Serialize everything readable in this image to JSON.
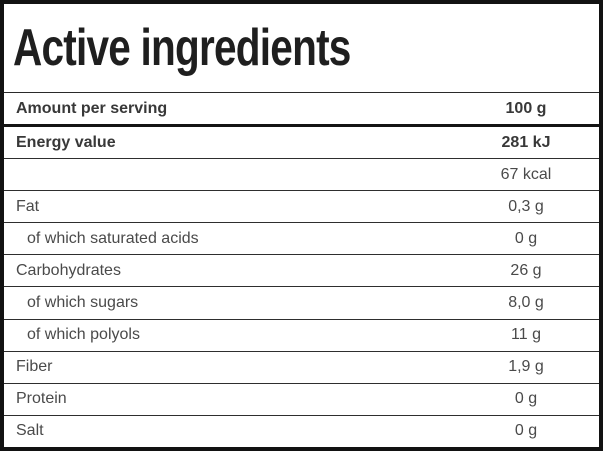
{
  "table": {
    "title": "Active ingredients",
    "header": {
      "label": "Amount per serving",
      "value": "100 g"
    },
    "rows": [
      {
        "label": "Energy value",
        "value": "281 kJ",
        "bold": true,
        "indent": false
      },
      {
        "label": "",
        "value": "67 kcal",
        "bold": false,
        "indent": false
      },
      {
        "label": "Fat",
        "value": "0,3 g",
        "bold": false,
        "indent": false
      },
      {
        "label": "of which saturated acids",
        "value": "0 g",
        "bold": false,
        "indent": true
      },
      {
        "label": "Carbohydrates",
        "value": "26 g",
        "bold": false,
        "indent": false
      },
      {
        "label": "of which sugars",
        "value": "8,0 g",
        "bold": false,
        "indent": true
      },
      {
        "label": "of which polyols",
        "value": "11 g",
        "bold": false,
        "indent": true
      },
      {
        "label": "Fiber",
        "value": "1,9 g",
        "bold": false,
        "indent": false
      },
      {
        "label": "Protein",
        "value": "0 g",
        "bold": false,
        "indent": false
      },
      {
        "label": "Salt",
        "value": "0 g",
        "bold": false,
        "indent": false
      }
    ],
    "colors": {
      "outer_border": "#121212",
      "separator": "#2e2e2e",
      "title_text": "#1f1f1f",
      "bold_text": "#383838",
      "text": "#4a4a4a",
      "background": "#ffffff"
    }
  }
}
